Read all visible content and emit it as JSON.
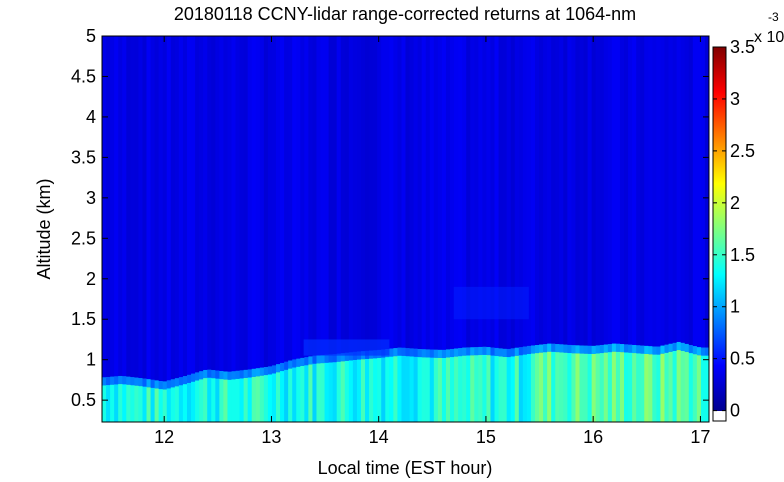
{
  "chart_data": {
    "type": "heatmap",
    "title": "20180118 CCNY-lidar range-corrected returns at 1064-nm",
    "xlabel": "Local time (EST hour)",
    "ylabel": "Altitude (km)",
    "xlim": [
      11.42,
      17.08
    ],
    "ylim": [
      0.23,
      5.0
    ],
    "x_ticks": [
      12,
      13,
      14,
      15,
      16,
      17
    ],
    "y_ticks": [
      0.5,
      1,
      1.5,
      2,
      2.5,
      3,
      3.5,
      4,
      4.5,
      5
    ],
    "colorbar": {
      "ticks": [
        0,
        0.5,
        1,
        1.5,
        2,
        2.5,
        3,
        3.5
      ],
      "range": [
        -0.1,
        3.5
      ],
      "exponent_label": "x 10",
      "exponent": "-3",
      "colormap": "jet"
    },
    "boundary_layer_top_km": {
      "x": [
        11.42,
        11.6,
        11.8,
        12.0,
        12.2,
        12.4,
        12.6,
        12.8,
        13.0,
        13.2,
        13.4,
        13.6,
        13.8,
        14.0,
        14.2,
        14.4,
        14.6,
        14.8,
        15.0,
        15.2,
        15.4,
        15.6,
        15.8,
        16.0,
        16.2,
        16.4,
        16.6,
        16.8,
        17.0,
        17.08
      ],
      "y": [
        0.68,
        0.7,
        0.67,
        0.63,
        0.7,
        0.78,
        0.75,
        0.78,
        0.82,
        0.9,
        0.95,
        0.97,
        1.0,
        1.02,
        1.05,
        1.03,
        1.02,
        1.05,
        1.06,
        1.03,
        1.07,
        1.1,
        1.08,
        1.07,
        1.1,
        1.08,
        1.06,
        1.12,
        1.05,
        1.05
      ]
    },
    "boundary_layer_value": 1.4,
    "free_troposphere_value": 0.35
  }
}
